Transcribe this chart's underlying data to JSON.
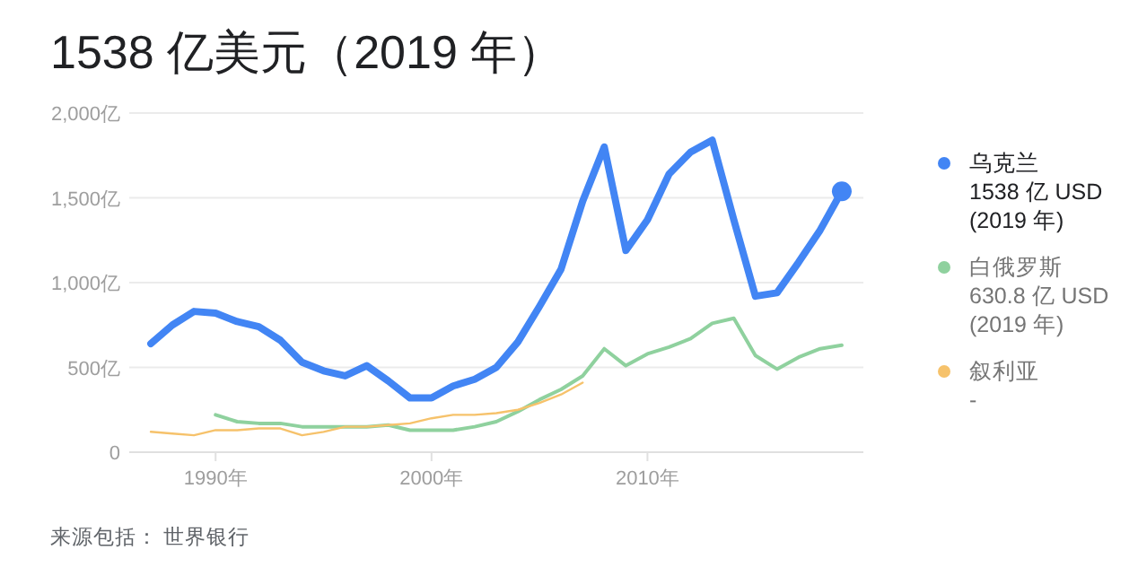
{
  "chart_data": {
    "type": "line",
    "title": "1538 亿美元（2019 年）",
    "series": [
      {
        "name": "乌克兰",
        "color": "#4285f4",
        "x": [
          1987,
          1988,
          1989,
          1990,
          1991,
          1992,
          1993,
          1994,
          1995,
          1996,
          1997,
          1998,
          1999,
          2000,
          2001,
          2002,
          2003,
          2004,
          2005,
          2006,
          2007,
          2008,
          2009,
          2010,
          2011,
          2012,
          2013,
          2014,
          2015,
          2016,
          2017,
          2018,
          2019
        ],
        "values": [
          640,
          750,
          830,
          820,
          770,
          740,
          660,
          530,
          480,
          450,
          510,
          420,
          320,
          320,
          390,
          430,
          500,
          650,
          860,
          1080,
          1480,
          1800,
          1190,
          1370,
          1640,
          1770,
          1840,
          1370,
          920,
          940,
          1120,
          1310,
          1538
        ]
      },
      {
        "name": "白俄罗斯",
        "color": "#8fd19e",
        "x": [
          1990,
          1991,
          1992,
          1993,
          1994,
          1995,
          1996,
          1997,
          1998,
          1999,
          2000,
          2001,
          2002,
          2003,
          2004,
          2005,
          2006,
          2007,
          2008,
          2009,
          2010,
          2011,
          2012,
          2013,
          2014,
          2015,
          2016,
          2017,
          2018,
          2019
        ],
        "values": [
          220,
          180,
          170,
          170,
          150,
          150,
          150,
          150,
          160,
          130,
          130,
          130,
          150,
          180,
          240,
          310,
          370,
          450,
          610,
          510,
          580,
          620,
          670,
          760,
          790,
          570,
          490,
          560,
          610,
          630.8
        ]
      },
      {
        "name": "叙利亚",
        "color": "#f6c26b",
        "x": [
          1987,
          1988,
          1989,
          1990,
          1991,
          1992,
          1993,
          1994,
          1995,
          1996,
          1997,
          1998,
          1999,
          2000,
          2001,
          2002,
          2003,
          2004,
          2005,
          2006,
          2007
        ],
        "values": [
          120,
          110,
          100,
          130,
          130,
          140,
          140,
          100,
          120,
          150,
          150,
          160,
          170,
          200,
          220,
          220,
          230,
          250,
          290,
          340,
          410
        ]
      }
    ],
    "annotations": [
      "1538 亿 USD",
      "(2019 年)",
      "630.8 亿 USD",
      "(2019 年)",
      "-",
      "来源包括： 世界银行"
    ],
    "xlim": [
      1986,
      2020
    ],
    "xticks": [
      {
        "value": 1990,
        "label": "1990年"
      },
      {
        "value": 2000,
        "label": "2000年"
      },
      {
        "value": 2010,
        "label": "2010年"
      }
    ],
    "ylim": [
      0,
      2000
    ],
    "yticks": [
      0,
      {
        "value": 500,
        "label": "500亿"
      },
      {
        "value": 1000,
        "label": "1,000亿"
      },
      {
        "value": 1500,
        "label": "1,500亿"
      },
      {
        "value": 2000,
        "label": "2,000亿"
      }
    ],
    "grid": "y",
    "legend": "right"
  }
}
